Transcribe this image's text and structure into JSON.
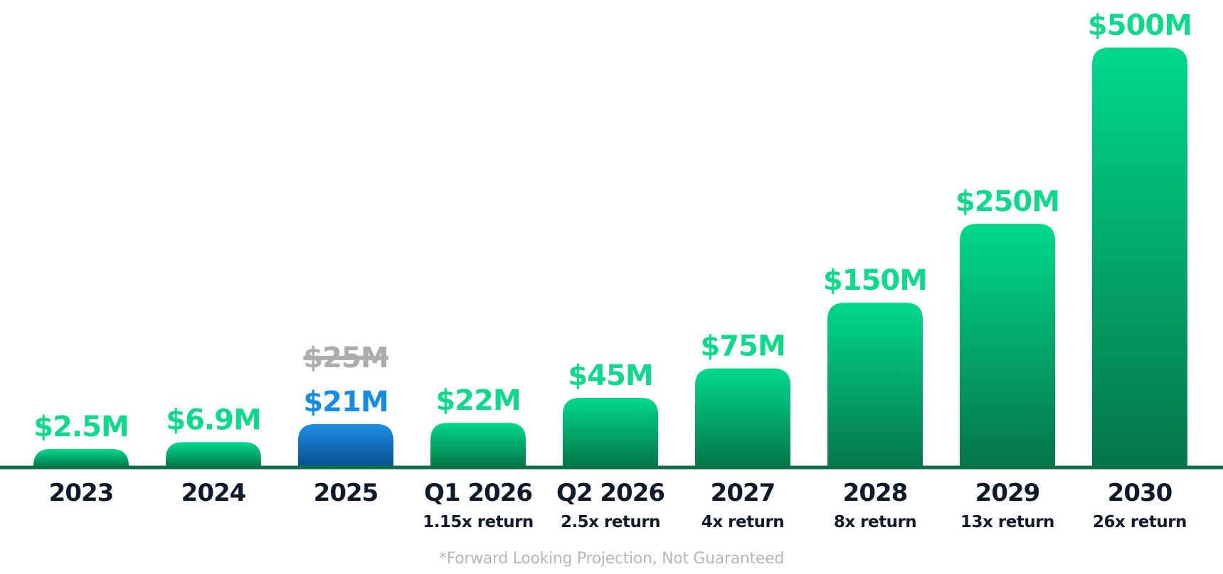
{
  "chart_data": {
    "type": "bar",
    "categories": [
      "2023",
      "2024",
      "2025",
      "Q1 2026",
      "Q2 2026",
      "2027",
      "2028",
      "2029",
      "2030"
    ],
    "values": [
      2.5,
      6.9,
      21,
      22,
      45,
      75,
      150,
      250,
      500
    ],
    "value_labels": [
      "$2.5M",
      "$6.9M",
      "$21M",
      "$22M",
      "$45M",
      "$75M",
      "$150M",
      "$250M",
      "$500M"
    ],
    "struck_labels": [
      "",
      "",
      "$25M",
      "",
      "",
      "",
      "",
      "",
      ""
    ],
    "return_labels": [
      "",
      "",
      "",
      "1.15x return",
      "2.5x return",
      "4x return",
      "8x return",
      "13x return",
      "26x return"
    ],
    "highlight_index": 2,
    "title": "",
    "xlabel": "",
    "ylabel": "",
    "ylim": [
      0,
      500
    ],
    "grid": false,
    "colors": {
      "bar_top": "#00d98b",
      "bar_bottom": "#057548",
      "highlight_top": "#1e8ee6",
      "highlight_bottom": "#084f8c",
      "value_text": "#11d98c",
      "highlight_text": "#1a8be3",
      "struck_text": "#adadad",
      "baseline": "#0b6e45",
      "category_text": "#0f1b2b"
    }
  },
  "footnote": "*Forward Looking Projection, Not Guaranteed"
}
